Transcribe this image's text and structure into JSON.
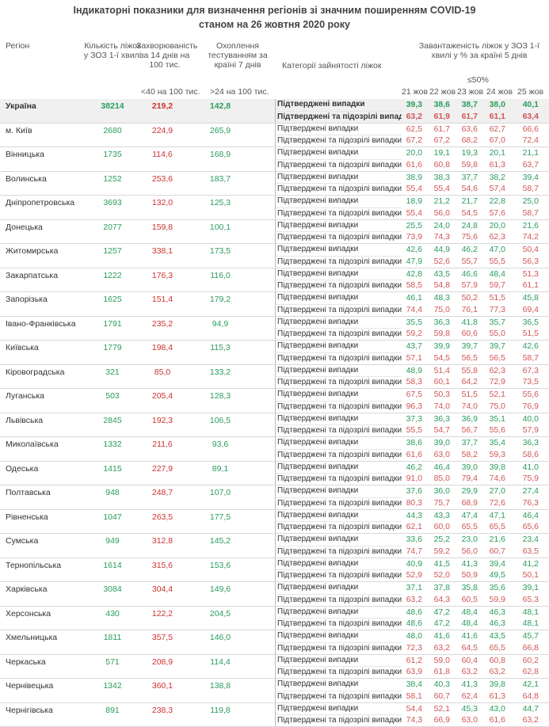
{
  "title_line1": "Індикаторні показники для визначення регіонів зі значним поширенням COVID-19",
  "title_line2": "станом на 26 жовтня 2020 року",
  "headers": {
    "region": "Регіон",
    "beds": "Кількість ліжок у ЗОЗ 1-ї хвилі",
    "incidence": "Захворюваність за 14 днів на 100 тис.",
    "testing": "Охоплення тестуванням за країні 7 днів",
    "category": "Категорії зайнятості ліжок",
    "occupancy": "Завантаженість ліжок у ЗОЗ 1-ї хвилі у % за країні 5 днів",
    "incidence_threshold": "<40 на 100 тис.",
    "testing_threshold": ">24 на 100 тис.",
    "occupancy_threshold": "≤50%",
    "dates": [
      "21 жов",
      "22 жов",
      "23 жов",
      "24 жов",
      "25 жов"
    ]
  },
  "category_labels": {
    "confirmed": "Підтверджені випадки",
    "suspected": "Підтверджені та підозрілі випадки"
  },
  "colors": {
    "good": "#2a9d5c",
    "bad": "#d25656"
  },
  "regions": [
    {
      "name": "Україна",
      "beds": "38214",
      "incidence": "219,2",
      "testing": "142,8",
      "confirmed": [
        "39,3",
        "38,6",
        "38,7",
        "38,0",
        "40,1"
      ],
      "suspected": [
        "63,2",
        "61,9",
        "61,7",
        "61,1",
        "63,4"
      ]
    },
    {
      "name": "м. Київ",
      "beds": "2680",
      "incidence": "224,9",
      "testing": "265,9",
      "confirmed": [
        "62,5",
        "61,7",
        "63,6",
        "62,7",
        "66,6"
      ],
      "suspected": [
        "67,2",
        "67,2",
        "68,2",
        "67,0",
        "72,4"
      ]
    },
    {
      "name": "Вінницька",
      "beds": "1735",
      "incidence": "114,6",
      "testing": "168,9",
      "confirmed": [
        "20,0",
        "19,1",
        "19,3",
        "20,1",
        "21,1"
      ],
      "suspected": [
        "61,6",
        "60,8",
        "59,8",
        "61,3",
        "63,7"
      ]
    },
    {
      "name": "Волинська",
      "beds": "1252",
      "incidence": "253,6",
      "testing": "183,7",
      "confirmed": [
        "38,9",
        "38,3",
        "37,7",
        "38,2",
        "39,4"
      ],
      "suspected": [
        "55,4",
        "55,4",
        "54,6",
        "57,4",
        "58,7"
      ]
    },
    {
      "name": "Дніпропетровська",
      "beds": "3693",
      "incidence": "132,0",
      "testing": "125,3",
      "confirmed": [
        "18,9",
        "21,2",
        "21,7",
        "22,8",
        "25,0"
      ],
      "suspected": [
        "55,4",
        "56,0",
        "54,5",
        "57,6",
        "58,7"
      ]
    },
    {
      "name": "Донецька",
      "beds": "2077",
      "incidence": "159,8",
      "testing": "100,1",
      "confirmed": [
        "25,5",
        "24,0",
        "24,8",
        "20,0",
        "21,6"
      ],
      "suspected": [
        "73,9",
        "74,3",
        "75,6",
        "62,3",
        "74,2"
      ]
    },
    {
      "name": "Житомирська",
      "beds": "1257",
      "incidence": "338,1",
      "testing": "173,5",
      "confirmed": [
        "42,6",
        "44,9",
        "46,2",
        "47,0",
        "50,4"
      ],
      "suspected": [
        "47,9",
        "52,6",
        "55,7",
        "55,5",
        "56,3"
      ]
    },
    {
      "name": "Закарпатська",
      "beds": "1222",
      "incidence": "176,3",
      "testing": "116,0",
      "confirmed": [
        "42,8",
        "43,5",
        "46,6",
        "48,4",
        "51,3"
      ],
      "suspected": [
        "58,5",
        "54,8",
        "57,9",
        "59,7",
        "61,1"
      ]
    },
    {
      "name": "Запорізька",
      "beds": "1625",
      "incidence": "151,4",
      "testing": "179,2",
      "confirmed": [
        "46,1",
        "48,3",
        "50,2",
        "51,5",
        "45,8"
      ],
      "suspected": [
        "74,4",
        "75,0",
        "76,1",
        "77,3",
        "69,4"
      ]
    },
    {
      "name": "Івано-Франківська",
      "beds": "1791",
      "incidence": "235,2",
      "testing": "94,9",
      "confirmed": [
        "35,5",
        "36,3",
        "41,8",
        "35,7",
        "36,5"
      ],
      "suspected": [
        "59,2",
        "59,8",
        "60,6",
        "55,0",
        "51,5"
      ]
    },
    {
      "name": "Київська",
      "beds": "1779",
      "incidence": "198,4",
      "testing": "115,3",
      "confirmed": [
        "43,7",
        "39,9",
        "39,7",
        "39,7",
        "42,6"
      ],
      "suspected": [
        "57,1",
        "54,5",
        "56,5",
        "56,5",
        "58,7"
      ]
    },
    {
      "name": "Кіровоградська",
      "beds": "321",
      "incidence": "85,0",
      "testing": "133,2",
      "confirmed": [
        "48,9",
        "51,4",
        "55,8",
        "62,3",
        "67,3"
      ],
      "suspected": [
        "58,3",
        "60,1",
        "64,2",
        "72,9",
        "73,5"
      ]
    },
    {
      "name": "Луганська",
      "beds": "503",
      "incidence": "205,4",
      "testing": "128,3",
      "confirmed": [
        "67,5",
        "50,3",
        "51,5",
        "52,1",
        "55,6"
      ],
      "suspected": [
        "96,3",
        "74,0",
        "74,0",
        "75,0",
        "76,9"
      ]
    },
    {
      "name": "Львівська",
      "beds": "2845",
      "incidence": "192,3",
      "testing": "106,5",
      "confirmed": [
        "37,3",
        "36,3",
        "36,9",
        "35,1",
        "40,0"
      ],
      "suspected": [
        "55,5",
        "54,7",
        "56,7",
        "55,6",
        "57,9"
      ]
    },
    {
      "name": "Миколаївська",
      "beds": "1332",
      "incidence": "211,6",
      "testing": "93,6",
      "confirmed": [
        "38,6",
        "39,0",
        "37,7",
        "35,4",
        "36,3"
      ],
      "suspected": [
        "61,6",
        "63,0",
        "58,2",
        "59,3",
        "58,6"
      ]
    },
    {
      "name": "Одеська",
      "beds": "1415",
      "incidence": "227,9",
      "testing": "89,1",
      "confirmed": [
        "46,2",
        "46,4",
        "39,0",
        "39,8",
        "41,0"
      ],
      "suspected": [
        "91,0",
        "85,0",
        "79,4",
        "74,6",
        "75,9"
      ]
    },
    {
      "name": "Полтавська",
      "beds": "948",
      "incidence": "248,7",
      "testing": "107,0",
      "confirmed": [
        "37,6",
        "36,0",
        "29,9",
        "27,0",
        "27,4"
      ],
      "suspected": [
        "80,3",
        "75,7",
        "68,9",
        "72,6",
        "76,3"
      ]
    },
    {
      "name": "Рівненська",
      "beds": "1047",
      "incidence": "263,5",
      "testing": "177,5",
      "confirmed": [
        "44,3",
        "43,3",
        "47,4",
        "47,1",
        "46,4"
      ],
      "suspected": [
        "62,1",
        "60,0",
        "65,5",
        "65,5",
        "65,6"
      ]
    },
    {
      "name": "Сумська",
      "beds": "949",
      "incidence": "312,8",
      "testing": "145,2",
      "confirmed": [
        "33,6",
        "25,2",
        "23,0",
        "21,6",
        "23,4"
      ],
      "suspected": [
        "74,7",
        "59,2",
        "56,0",
        "60,7",
        "63,5"
      ]
    },
    {
      "name": "Тернопільська",
      "beds": "1614",
      "incidence": "315,6",
      "testing": "153,6",
      "confirmed": [
        "40,9",
        "41,5",
        "41,3",
        "39,4",
        "41,2"
      ],
      "suspected": [
        "52,9",
        "52,0",
        "50,9",
        "49,5",
        "50,1"
      ]
    },
    {
      "name": "Харківська",
      "beds": "3084",
      "incidence": "304,4",
      "testing": "149,6",
      "confirmed": [
        "37,1",
        "37,8",
        "35,8",
        "35,6",
        "39,1"
      ],
      "suspected": [
        "63,2",
        "64,3",
        "60,5",
        "59,9",
        "65,3"
      ]
    },
    {
      "name": "Херсонська",
      "beds": "430",
      "incidence": "122,2",
      "testing": "204,5",
      "confirmed": [
        "48,6",
        "47,2",
        "48,4",
        "46,3",
        "48,1"
      ],
      "suspected": [
        "48,6",
        "47,2",
        "48,4",
        "46,3",
        "48,1"
      ]
    },
    {
      "name": "Хмельницька",
      "beds": "1811",
      "incidence": "357,5",
      "testing": "146,0",
      "confirmed": [
        "48,0",
        "41,6",
        "41,6",
        "43,5",
        "45,7"
      ],
      "suspected": [
        "72,3",
        "63,2",
        "64,5",
        "65,5",
        "66,8"
      ]
    },
    {
      "name": "Черкаська",
      "beds": "571",
      "incidence": "208,9",
      "testing": "114,4",
      "confirmed": [
        "61,2",
        "59,0",
        "60,4",
        "60,8",
        "60,2"
      ],
      "suspected": [
        "63,9",
        "61,8",
        "63,2",
        "63,2",
        "62,8"
      ]
    },
    {
      "name": "Чернівецька",
      "beds": "1342",
      "incidence": "360,1",
      "testing": "138,8",
      "confirmed": [
        "38,4",
        "40,3",
        "41,3",
        "39,8",
        "42,1"
      ],
      "suspected": [
        "58,1",
        "60,7",
        "62,4",
        "61,3",
        "64,8"
      ]
    },
    {
      "name": "Чернігівська",
      "beds": "891",
      "incidence": "238,3",
      "testing": "119,8",
      "confirmed": [
        "54,4",
        "52,1",
        "45,3",
        "43,0",
        "44,7"
      ],
      "suspected": [
        "74,3",
        "66,9",
        "63,0",
        "61,6",
        "63,2"
      ]
    }
  ]
}
